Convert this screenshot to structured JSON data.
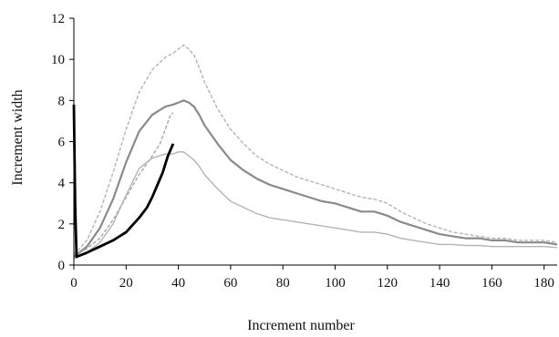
{
  "chart_data": {
    "type": "line",
    "title": "",
    "xlabel": "Increment number",
    "ylabel": "Increment width",
    "xlim": [
      0,
      185
    ],
    "ylim": [
      0,
      12
    ],
    "x_ticks": [
      0,
      20,
      40,
      60,
      80,
      100,
      120,
      140,
      160,
      180
    ],
    "y_ticks": [
      0,
      2,
      4,
      6,
      8,
      10,
      12
    ],
    "grid": false,
    "legend": "none",
    "series": [
      {
        "color": "#8a8a8a",
        "style": "solid",
        "x": [
          0,
          5,
          10,
          15,
          20,
          25,
          30,
          35,
          38,
          40,
          42,
          44,
          46,
          48,
          50,
          55,
          60,
          65,
          70,
          75,
          80,
          85,
          90,
          95,
          100,
          105,
          110,
          115,
          120,
          125,
          130,
          135,
          140,
          145,
          150,
          155,
          160,
          165,
          170,
          175,
          180,
          185
        ],
        "y": [
          0.4,
          0.9,
          1.8,
          3.2,
          5.0,
          6.5,
          7.3,
          7.7,
          7.8,
          7.9,
          8.0,
          7.9,
          7.7,
          7.3,
          6.8,
          5.9,
          5.1,
          4.6,
          4.2,
          3.9,
          3.7,
          3.5,
          3.3,
          3.1,
          3.0,
          2.8,
          2.6,
          2.6,
          2.4,
          2.1,
          1.9,
          1.7,
          1.5,
          1.4,
          1.3,
          1.3,
          1.2,
          1.2,
          1.1,
          1.1,
          1.1,
          1.0
        ]
      },
      {
        "color": "#b4b4b4",
        "style": "dashed",
        "x": [
          0,
          5,
          10,
          15,
          20,
          25,
          30,
          35,
          38,
          40,
          42,
          44,
          46,
          48,
          50,
          55,
          60,
          65,
          70,
          75,
          80,
          85,
          90,
          95,
          100,
          105,
          110,
          115,
          120,
          125,
          130,
          135,
          140,
          145,
          150,
          155,
          160,
          165,
          170,
          175,
          180,
          185
        ],
        "y": [
          0.5,
          1.2,
          2.6,
          4.5,
          6.6,
          8.4,
          9.5,
          10.1,
          10.3,
          10.5,
          10.7,
          10.5,
          10.2,
          9.6,
          8.9,
          7.6,
          6.6,
          5.9,
          5.3,
          4.9,
          4.6,
          4.3,
          4.1,
          3.9,
          3.7,
          3.5,
          3.3,
          3.2,
          3.0,
          2.6,
          2.3,
          2.0,
          1.8,
          1.6,
          1.5,
          1.4,
          1.3,
          1.3,
          1.2,
          1.2,
          1.2,
          1.1
        ]
      },
      {
        "color": "#b4b4b4",
        "style": "solid",
        "x": [
          0,
          5,
          10,
          15,
          20,
          25,
          30,
          35,
          38,
          40,
          42,
          44,
          46,
          48,
          50,
          55,
          60,
          65,
          70,
          75,
          80,
          85,
          90,
          95,
          100,
          105,
          110,
          115,
          120,
          125,
          130,
          135,
          140,
          145,
          150,
          155,
          160,
          165,
          170,
          175,
          180,
          185
        ],
        "y": [
          0.3,
          0.6,
          1.1,
          2.0,
          3.4,
          4.7,
          5.2,
          5.4,
          5.4,
          5.5,
          5.5,
          5.3,
          5.1,
          4.8,
          4.4,
          3.7,
          3.1,
          2.8,
          2.5,
          2.3,
          2.2,
          2.1,
          2.0,
          1.9,
          1.8,
          1.7,
          1.6,
          1.6,
          1.5,
          1.3,
          1.2,
          1.1,
          1.0,
          1.0,
          0.95,
          0.95,
          0.9,
          0.9,
          0.9,
          0.9,
          0.9,
          0.85
        ]
      },
      {
        "color": "#a8a8a8",
        "style": "dashed",
        "x": [
          0,
          1,
          5,
          10,
          15,
          20,
          25,
          30,
          33,
          35,
          37,
          38
        ],
        "y": [
          7.5,
          0.5,
          0.8,
          1.3,
          2.2,
          3.3,
          4.4,
          5.3,
          5.9,
          6.6,
          7.3,
          7.4
        ]
      },
      {
        "color": "#000000",
        "style": "solid",
        "x": [
          0,
          0.5,
          1,
          5,
          10,
          15,
          20,
          25,
          28,
          30,
          32,
          34,
          36,
          38
        ],
        "y": [
          7.8,
          3.0,
          0.4,
          0.6,
          0.9,
          1.2,
          1.6,
          2.3,
          2.8,
          3.3,
          3.9,
          4.5,
          5.3,
          5.9
        ]
      }
    ]
  }
}
